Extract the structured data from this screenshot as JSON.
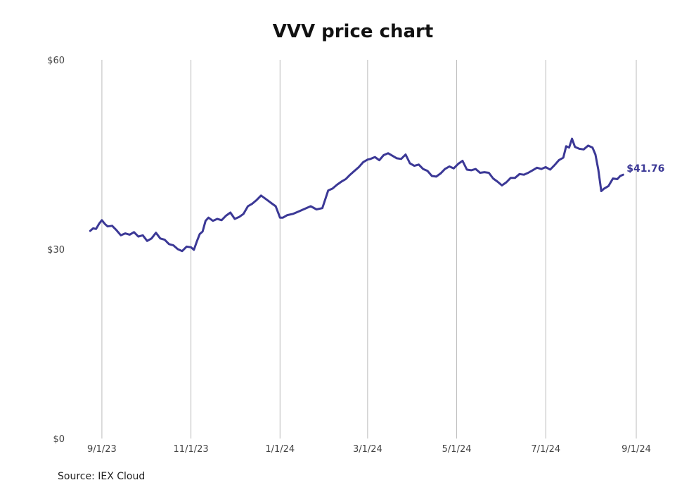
{
  "chart_data": {
    "type": "line",
    "title": "VVV price chart",
    "source": "Source: IEX Cloud",
    "line_color": "#3b3896",
    "grid_color": "#bbbbbb",
    "grid": "vertical",
    "ylim": [
      0,
      60
    ],
    "y_ticks": [
      {
        "value": 0,
        "label": "$0"
      },
      {
        "value": 30,
        "label": "$30"
      },
      {
        "value": 60,
        "label": "$60"
      }
    ],
    "x_range": [
      "2023-08-20",
      "2024-09-01"
    ],
    "x_ticks": [
      {
        "date": "2023-09-01",
        "label": "9/1/23"
      },
      {
        "date": "2023-11-01",
        "label": "11/1/23"
      },
      {
        "date": "2024-01-01",
        "label": "1/1/24"
      },
      {
        "date": "2024-03-01",
        "label": "3/1/24"
      },
      {
        "date": "2024-05-01",
        "label": "5/1/24"
      },
      {
        "date": "2024-07-01",
        "label": "7/1/24"
      },
      {
        "date": "2024-09-01",
        "label": "9/1/24"
      }
    ],
    "last_label": "$41.76",
    "series": [
      {
        "x": [
          "2023-08-24",
          "2023-08-26",
          "2023-08-28",
          "2023-08-30",
          "2023-09-01",
          "2023-09-03",
          "2023-09-05",
          "2023-09-08",
          "2023-09-11",
          "2023-09-14",
          "2023-09-17",
          "2023-09-20",
          "2023-09-23",
          "2023-09-26",
          "2023-09-29",
          "2023-10-02",
          "2023-10-05",
          "2023-10-08",
          "2023-10-11",
          "2023-10-14",
          "2023-10-17",
          "2023-10-20",
          "2023-10-23",
          "2023-10-26",
          "2023-10-29",
          "2023-11-01",
          "2023-11-03",
          "2023-11-05",
          "2023-11-07",
          "2023-11-09",
          "2023-11-11",
          "2023-11-13",
          "2023-11-16",
          "2023-11-19",
          "2023-11-22",
          "2023-11-25",
          "2023-11-28",
          "2023-12-01",
          "2023-12-04",
          "2023-12-07",
          "2023-12-10",
          "2023-12-13",
          "2023-12-16",
          "2023-12-19",
          "2023-12-22",
          "2023-12-26",
          "2023-12-29",
          "2024-01-01",
          "2024-01-03",
          "2024-01-06",
          "2024-01-10",
          "2024-01-14",
          "2024-01-18",
          "2024-01-22",
          "2024-01-26",
          "2024-01-30",
          "2024-02-03",
          "2024-02-06",
          "2024-02-09",
          "2024-02-12",
          "2024-02-15",
          "2024-02-18",
          "2024-02-21",
          "2024-02-24",
          "2024-02-27",
          "2024-03-01",
          "2024-03-03",
          "2024-03-06",
          "2024-03-09",
          "2024-03-12",
          "2024-03-15",
          "2024-03-18",
          "2024-03-21",
          "2024-03-24",
          "2024-03-27",
          "2024-03-30",
          "2024-04-02",
          "2024-04-05",
          "2024-04-08",
          "2024-04-11",
          "2024-04-14",
          "2024-04-17",
          "2024-04-20",
          "2024-04-23",
          "2024-04-26",
          "2024-04-29",
          "2024-05-02",
          "2024-05-05",
          "2024-05-08",
          "2024-05-11",
          "2024-05-14",
          "2024-05-17",
          "2024-05-20",
          "2024-05-23",
          "2024-05-26",
          "2024-05-29",
          "2024-06-01",
          "2024-06-04",
          "2024-06-07",
          "2024-06-10",
          "2024-06-13",
          "2024-06-16",
          "2024-06-19",
          "2024-06-22",
          "2024-06-25",
          "2024-06-28",
          "2024-07-01",
          "2024-07-04",
          "2024-07-07",
          "2024-07-10",
          "2024-07-13",
          "2024-07-15",
          "2024-07-17",
          "2024-07-19",
          "2024-07-21",
          "2024-07-24",
          "2024-07-27",
          "2024-07-30",
          "2024-08-02",
          "2024-08-04",
          "2024-08-06",
          "2024-08-08",
          "2024-08-10",
          "2024-08-13",
          "2024-08-16",
          "2024-08-19",
          "2024-08-21",
          "2024-08-23"
        ],
        "y": [
          32.9,
          33.3,
          33.2,
          34.0,
          34.6,
          34.0,
          33.6,
          33.7,
          33.0,
          32.2,
          32.5,
          32.3,
          32.7,
          32.0,
          32.2,
          31.3,
          31.7,
          32.6,
          31.7,
          31.5,
          30.8,
          30.6,
          30.0,
          29.7,
          30.4,
          30.3,
          29.9,
          31.2,
          32.4,
          32.8,
          34.5,
          35.0,
          34.5,
          34.8,
          34.6,
          35.3,
          35.8,
          34.8,
          35.1,
          35.6,
          36.8,
          37.2,
          37.8,
          38.5,
          38.0,
          37.3,
          36.8,
          35.0,
          35.0,
          35.4,
          35.6,
          36.0,
          36.4,
          36.8,
          36.3,
          36.5,
          39.3,
          39.6,
          40.2,
          40.7,
          41.1,
          41.8,
          42.4,
          43.0,
          43.8,
          44.2,
          44.3,
          44.6,
          44.1,
          44.9,
          45.2,
          44.8,
          44.4,
          44.3,
          45.0,
          43.6,
          43.2,
          43.4,
          42.7,
          42.4,
          41.6,
          41.5,
          42.0,
          42.7,
          43.1,
          42.8,
          43.5,
          44.0,
          42.6,
          42.5,
          42.7,
          42.1,
          42.2,
          42.1,
          41.2,
          40.7,
          40.1,
          40.6,
          41.3,
          41.3,
          41.9,
          41.8,
          42.1,
          42.5,
          42.9,
          42.7,
          43.0,
          42.6,
          43.3,
          44.1,
          44.5,
          46.3,
          46.1,
          47.5,
          46.2,
          45.9,
          45.8,
          46.4,
          46.1,
          45.0,
          42.6,
          39.2,
          39.6,
          40.0,
          41.2,
          41.1,
          41.6,
          41.8
        ]
      }
    ]
  }
}
